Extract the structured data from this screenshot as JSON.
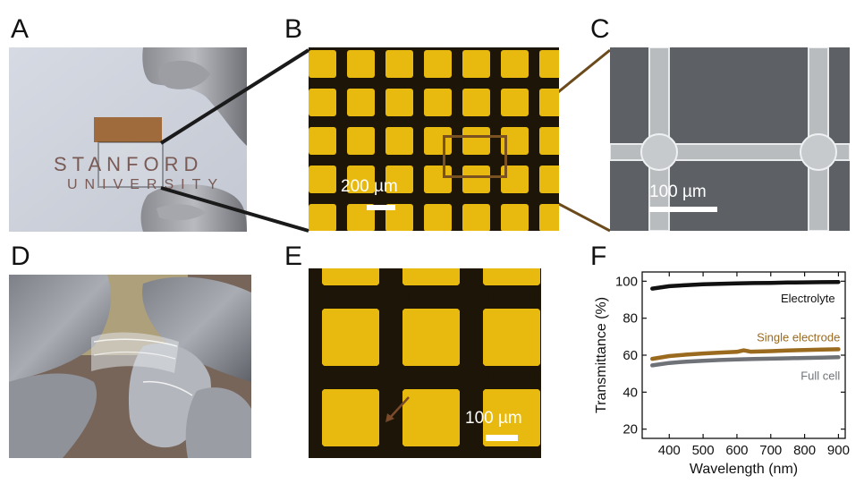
{
  "figure": {
    "panels": [
      {
        "letter": "A"
      },
      {
        "letter": "B"
      },
      {
        "letter": "C"
      },
      {
        "letter": "D"
      },
      {
        "letter": "E"
      },
      {
        "letter": "F"
      }
    ],
    "photo_a": {
      "line1": "STANFORD",
      "line2": "UNIVERSITY"
    },
    "scalebars": {
      "b": "200 µm",
      "c": "100 µm",
      "e": "100 µm"
    },
    "colors": {
      "gold": "#e8b90e",
      "grid_dark": "#1c1508",
      "connector_b": "#1a1a1a",
      "connector_c": "#6b4a1c"
    }
  },
  "chart_data": {
    "type": "line",
    "xlabel": "Wavelength (nm)",
    "ylabel": "Transmittance (%)",
    "xlim": [
      320,
      920
    ],
    "ylim": [
      15,
      105
    ],
    "xticks": [
      400,
      500,
      600,
      700,
      800,
      900
    ],
    "yticks": [
      20,
      40,
      60,
      80,
      100
    ],
    "grid": false,
    "legend": "inline labels",
    "series": [
      {
        "name": "Electrolyte",
        "color": "#111111",
        "x": [
          350,
          400,
          450,
          500,
          550,
          600,
          650,
          700,
          750,
          800,
          850,
          900
        ],
        "y": [
          96,
          97.3,
          97.9,
          98.3,
          98.6,
          98.8,
          99.0,
          99.1,
          99.3,
          99.4,
          99.5,
          99.6
        ]
      },
      {
        "name": "Single electrode",
        "color": "#9a6a1e",
        "x": [
          350,
          400,
          450,
          500,
          550,
          600,
          620,
          640,
          700,
          750,
          800,
          850,
          900
        ],
        "y": [
          58,
          59.5,
          60.3,
          60.9,
          61.4,
          61.8,
          62.6,
          61.9,
          62.2,
          62.5,
          62.8,
          63.0,
          63.2
        ]
      },
      {
        "name": "Full cell",
        "color": "#6f7378",
        "x": [
          350,
          400,
          450,
          500,
          550,
          600,
          650,
          700,
          750,
          800,
          850,
          900
        ],
        "y": [
          54.5,
          55.8,
          56.5,
          57.0,
          57.4,
          57.7,
          57.9,
          58.1,
          58.3,
          58.5,
          58.7,
          58.9
        ]
      }
    ]
  }
}
